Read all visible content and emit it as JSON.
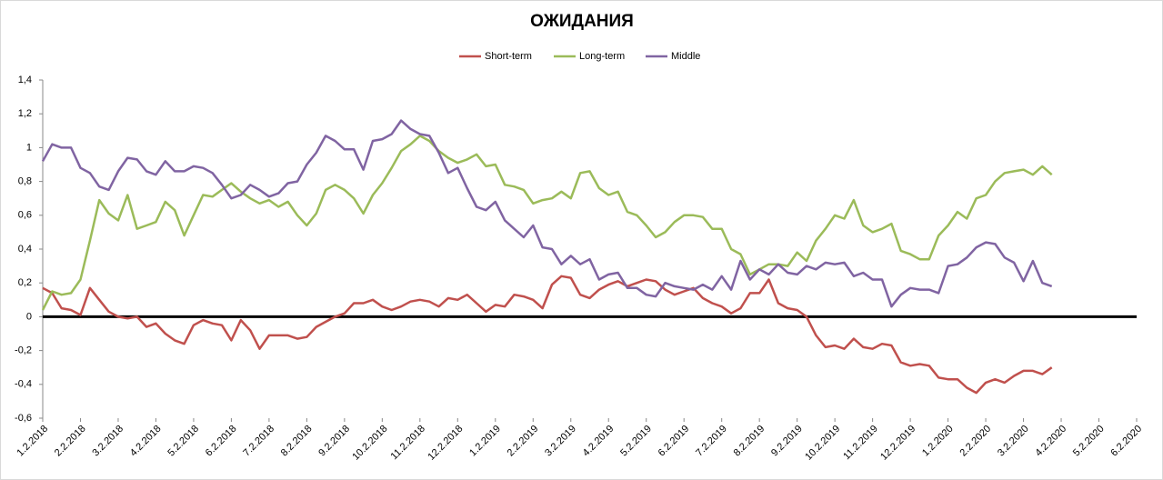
{
  "chart_data": {
    "type": "line",
    "title": "ОЖИДАНИЯ",
    "categories": [
      "1.2.2018",
      null,
      null,
      null,
      "2.2.2018",
      null,
      null,
      null,
      "3.2.2018",
      null,
      null,
      null,
      "4.2.2018",
      null,
      null,
      null,
      "5.2.2018",
      null,
      null,
      null,
      "6.2.2018",
      null,
      null,
      null,
      "7.2.2018",
      null,
      null,
      null,
      "8.2.2018",
      null,
      null,
      null,
      "9.2.2018",
      null,
      null,
      null,
      "10.2.2018",
      null,
      null,
      null,
      "11.2.2018",
      null,
      null,
      null,
      "12.2.2018",
      null,
      null,
      null,
      "1.2.2019",
      null,
      null,
      null,
      "2.2.2019",
      null,
      null,
      null,
      "3.2.2019",
      null,
      null,
      null,
      "4.2.2019",
      null,
      null,
      null,
      "5.2.2019",
      null,
      null,
      null,
      "6.2.2019",
      null,
      null,
      null,
      "7.2.2019",
      null,
      null,
      null,
      "8.2.2019",
      null,
      null,
      null,
      "9.2.2019",
      null,
      null,
      null,
      "10.2.2019",
      null,
      null,
      null,
      "11.2.2019",
      null,
      null,
      null,
      "12.2.2019",
      null,
      null,
      null,
      "1.2.2020",
      null,
      null,
      null,
      "2.2.2020",
      null,
      null,
      null,
      "3.2.2020",
      null,
      null,
      null,
      "4.2.2020",
      null,
      null,
      null,
      "5.2.2020",
      null,
      null,
      null,
      "6.2.2020"
    ],
    "series": [
      {
        "name": "Short-term",
        "color": "#c0504d",
        "values": [
          0.17,
          0.14,
          0.05,
          0.04,
          0.01,
          0.17,
          0.1,
          0.03,
          0.0,
          -0.01,
          0.0,
          -0.06,
          -0.04,
          -0.1,
          -0.14,
          -0.16,
          -0.05,
          -0.02,
          -0.04,
          -0.05,
          -0.14,
          -0.02,
          -0.08,
          -0.19,
          -0.11,
          -0.11,
          -0.11,
          -0.13,
          -0.12,
          -0.06,
          -0.03,
          0.0,
          0.02,
          0.08,
          0.08,
          0.1,
          0.06,
          0.04,
          0.06,
          0.09,
          0.1,
          0.09,
          0.06,
          0.11,
          0.1,
          0.13,
          0.08,
          0.03,
          0.07,
          0.06,
          0.13,
          0.12,
          0.1,
          0.05,
          0.19,
          0.24,
          0.23,
          0.13,
          0.11,
          0.16,
          0.19,
          0.21,
          0.18,
          0.2,
          0.22,
          0.21,
          0.16,
          0.13,
          0.15,
          0.17,
          0.11,
          0.08,
          0.06,
          0.02,
          0.05,
          0.14,
          0.14,
          0.22,
          0.08,
          0.05,
          0.04,
          0.0,
          -0.11,
          -0.18,
          -0.17,
          -0.19,
          -0.13,
          -0.18,
          -0.19,
          -0.16,
          -0.17,
          -0.27,
          -0.29,
          -0.28,
          -0.29,
          -0.36,
          -0.37,
          -0.37,
          -0.42,
          -0.45,
          -0.39,
          -0.37,
          -0.39,
          -0.35,
          -0.32,
          -0.32,
          -0.34,
          -0.3,
          null,
          null,
          null,
          null,
          null,
          null,
          null,
          null,
          null
        ]
      },
      {
        "name": "Long-term",
        "color": "#9bbb59",
        "values": [
          0.04,
          0.15,
          0.13,
          0.14,
          0.22,
          0.45,
          0.69,
          0.61,
          0.57,
          0.72,
          0.52,
          0.54,
          0.56,
          0.68,
          0.63,
          0.48,
          0.6,
          0.72,
          0.71,
          0.75,
          0.79,
          0.74,
          0.7,
          0.67,
          0.69,
          0.65,
          0.68,
          0.6,
          0.54,
          0.61,
          0.75,
          0.78,
          0.75,
          0.7,
          0.61,
          0.72,
          0.79,
          0.88,
          0.98,
          1.02,
          1.07,
          1.04,
          0.98,
          0.94,
          0.91,
          0.93,
          0.96,
          0.89,
          0.9,
          0.78,
          0.77,
          0.75,
          0.67,
          0.69,
          0.7,
          0.74,
          0.7,
          0.85,
          0.86,
          0.76,
          0.72,
          0.74,
          0.62,
          0.6,
          0.54,
          0.47,
          0.5,
          0.56,
          0.6,
          0.6,
          0.59,
          0.52,
          0.52,
          0.4,
          0.37,
          0.25,
          0.28,
          0.31,
          0.31,
          0.3,
          0.38,
          0.33,
          0.45,
          0.52,
          0.6,
          0.58,
          0.69,
          0.54,
          0.5,
          0.52,
          0.55,
          0.39,
          0.37,
          0.34,
          0.34,
          0.48,
          0.54,
          0.62,
          0.58,
          0.7,
          0.72,
          0.8,
          0.85,
          0.86,
          0.87,
          0.84,
          0.89,
          0.84,
          null,
          null,
          null,
          null,
          null,
          null,
          null,
          null,
          null
        ]
      },
      {
        "name": "Middle",
        "color": "#8064a2",
        "values": [
          0.92,
          1.02,
          1.0,
          1.0,
          0.88,
          0.85,
          0.77,
          0.75,
          0.86,
          0.94,
          0.93,
          0.86,
          0.84,
          0.92,
          0.86,
          0.86,
          0.89,
          0.88,
          0.85,
          0.78,
          0.7,
          0.72,
          0.78,
          0.75,
          0.71,
          0.73,
          0.79,
          0.8,
          0.9,
          0.97,
          1.07,
          1.04,
          0.99,
          0.99,
          0.87,
          1.04,
          1.05,
          1.08,
          1.16,
          1.11,
          1.08,
          1.07,
          0.97,
          0.85,
          0.88,
          0.76,
          0.65,
          0.63,
          0.68,
          0.57,
          0.52,
          0.47,
          0.54,
          0.41,
          0.4,
          0.31,
          0.36,
          0.31,
          0.34,
          0.22,
          0.25,
          0.26,
          0.17,
          0.17,
          0.13,
          0.12,
          0.2,
          0.18,
          0.17,
          0.16,
          0.19,
          0.16,
          0.24,
          0.16,
          0.33,
          0.22,
          0.28,
          0.25,
          0.31,
          0.26,
          0.25,
          0.3,
          0.28,
          0.32,
          0.31,
          0.32,
          0.24,
          0.26,
          0.22,
          0.22,
          0.06,
          0.13,
          0.17,
          0.16,
          0.16,
          0.14,
          0.3,
          0.31,
          0.35,
          0.41,
          0.44,
          0.43,
          0.35,
          0.32,
          0.21,
          0.33,
          0.2,
          0.18,
          null,
          null,
          null,
          null,
          null,
          null,
          null,
          null,
          null
        ]
      }
    ],
    "ylim": [
      -0.6,
      1.4
    ],
    "yticks": [
      {
        "value": -0.6,
        "label": "-0,6"
      },
      {
        "value": -0.4,
        "label": "-0,4"
      },
      {
        "value": -0.2,
        "label": "-0,2"
      },
      0,
      {
        "value": 0.2,
        "label": "0,2"
      },
      {
        "value": 0.4,
        "label": "0,4"
      },
      {
        "value": 0.6,
        "label": "0,6"
      },
      {
        "value": 0.8,
        "label": "0,8"
      },
      1,
      {
        "value": 1.2,
        "label": "1,2"
      },
      {
        "value": 1.4,
        "label": "1,4"
      }
    ],
    "grid": false,
    "legend": "top"
  }
}
